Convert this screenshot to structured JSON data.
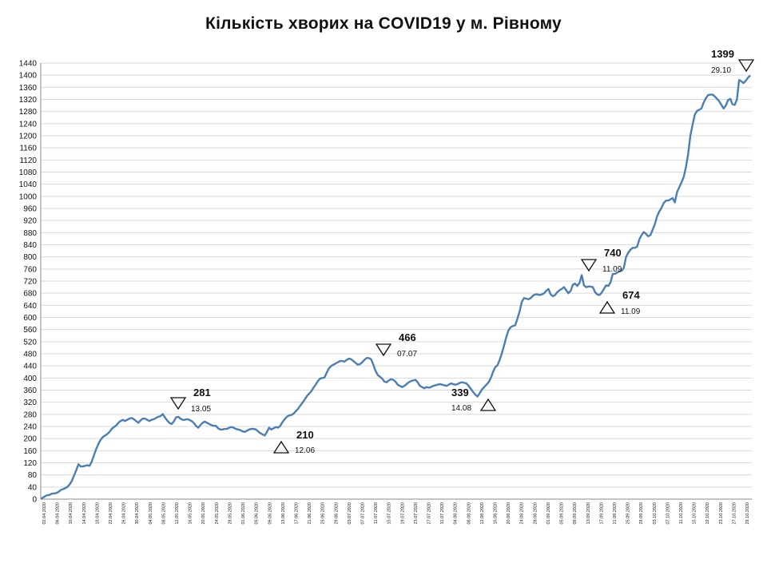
{
  "chart_data": {
    "type": "line",
    "title": "Кількість хворих на COVID19 у м. Рівному",
    "xlabel": "",
    "ylabel": "",
    "ylim": [
      0,
      1440
    ],
    "y_tick_step": 40,
    "grid": "horizontal",
    "legend": "none",
    "line_color": "#4a7eb4",
    "x_tick_labels": [
      "02.04.2020",
      "06.04.2020",
      "10.04.2020",
      "14.04.2020",
      "18.04.2020",
      "22.04.2020",
      "26.04.2020",
      "30.04.2020",
      "04.05.2020",
      "08.05.2020",
      "12.05.2020",
      "16.05.2020",
      "20.05.2020",
      "24.05.2020",
      "28.05.2020",
      "01.06.2020",
      "05.06.2020",
      "09.06.2020",
      "13.06.2020",
      "17.06.2020",
      "21.06.2020",
      "25.06.2020",
      "29.06.2020",
      "03.07.2020",
      "07.07.2020",
      "11.07.2020",
      "15.07.2020",
      "19.07.2020",
      "23.07.2020",
      "27.07.2020",
      "31.07.2020",
      "04.08.2020",
      "08.08.2020",
      "12.08.2020",
      "16.08.2020",
      "20.08.2020",
      "24.08.2020",
      "28.08.2020",
      "01.09.2020",
      "05.09.2020",
      "09.09.2020",
      "13.09.2020",
      "17.09.2020",
      "21.09.2020",
      "25.09.2020",
      "29.09.2020",
      "03.10.2020",
      "07.10.2020",
      "11.10.2020",
      "15.10.2020",
      "19.10.2020",
      "23.10.2020",
      "27.10.2020",
      "29.10.2020"
    ],
    "series": [
      {
        "values": [
          0,
          5,
          10,
          13,
          14,
          18,
          19,
          20,
          24,
          30,
          33,
          36,
          40,
          48,
          60,
          78,
          95,
          115,
          108,
          108,
          110,
          112,
          110,
          124,
          145,
          165,
          182,
          196,
          205,
          210,
          215,
          222,
          232,
          238,
          243,
          252,
          258,
          262,
          258,
          262,
          266,
          268,
          264,
          258,
          252,
          260,
          266,
          266,
          262,
          258,
          262,
          264,
          268,
          272,
          274,
          281,
          270,
          260,
          252,
          248,
          256,
          270,
          272,
          266,
          262,
          262,
          264,
          262,
          258,
          252,
          242,
          236,
          244,
          252,
          256,
          252,
          248,
          244,
          242,
          242,
          234,
          230,
          230,
          232,
          232,
          236,
          238,
          236,
          232,
          230,
          228,
          224,
          222,
          226,
          230,
          232,
          232,
          230,
          224,
          218,
          214,
          210,
          222,
          236,
          230,
          234,
          238,
          236,
          242,
          254,
          264,
          272,
          276,
          278,
          282,
          290,
          298,
          308,
          318,
          328,
          340,
          348,
          356,
          368,
          378,
          390,
          398,
          400,
          402,
          418,
          432,
          440,
          444,
          448,
          452,
          456,
          456,
          454,
          460,
          464,
          462,
          456,
          450,
          444,
          446,
          452,
          460,
          466,
          466,
          462,
          444,
          424,
          410,
          404,
          398,
          388,
          386,
          392,
          396,
          394,
          388,
          378,
          374,
          370,
          374,
          380,
          386,
          390,
          392,
          394,
          386,
          374,
          370,
          366,
          370,
          368,
          370,
          374,
          376,
          378,
          380,
          378,
          376,
          374,
          378,
          382,
          380,
          378,
          380,
          384,
          386,
          384,
          382,
          374,
          364,
          354,
          345,
          339,
          350,
          362,
          370,
          378,
          386,
          400,
          420,
          436,
          442,
          460,
          482,
          508,
          536,
          558,
          568,
          572,
          574,
          596,
          620,
          652,
          664,
          662,
          660,
          664,
          672,
          676,
          676,
          674,
          676,
          680,
          688,
          694,
          676,
          670,
          674,
          684,
          690,
          694,
          700,
          690,
          680,
          688,
          708,
          712,
          704,
          714,
          740,
          706,
          700,
          702,
          702,
          700,
          684,
          676,
          674,
          682,
          694,
          706,
          704,
          716,
          744,
          744,
          748,
          752,
          754,
          764,
          800,
          814,
          824,
          830,
          830,
          834,
          858,
          872,
          882,
          876,
          868,
          872,
          890,
          908,
          934,
          950,
          962,
          978,
          986,
          986,
          990,
          994,
          980,
          1014,
          1030,
          1046,
          1064,
          1096,
          1140,
          1200,
          1236,
          1270,
          1282,
          1286,
          1290,
          1310,
          1324,
          1334,
          1336,
          1336,
          1330,
          1322,
          1314,
          1302,
          1290,
          1300,
          1318,
          1322,
          1304,
          1302,
          1320,
          1384,
          1380,
          1374,
          1382,
          1392,
          1399
        ]
      }
    ],
    "annotations": [
      {
        "value": "281",
        "date": "13.05",
        "marker": "down"
      },
      {
        "value": "210",
        "date": "12.06",
        "marker": "up"
      },
      {
        "value": "466",
        "date": "07.07",
        "marker": "down"
      },
      {
        "value": "339",
        "date": "14.08",
        "marker": "up"
      },
      {
        "value": "740",
        "date": "11.09",
        "marker": "down"
      },
      {
        "value": "674",
        "date": "11.09",
        "marker": "up"
      },
      {
        "value": "1399",
        "date": "29.10",
        "marker": "down"
      }
    ]
  }
}
